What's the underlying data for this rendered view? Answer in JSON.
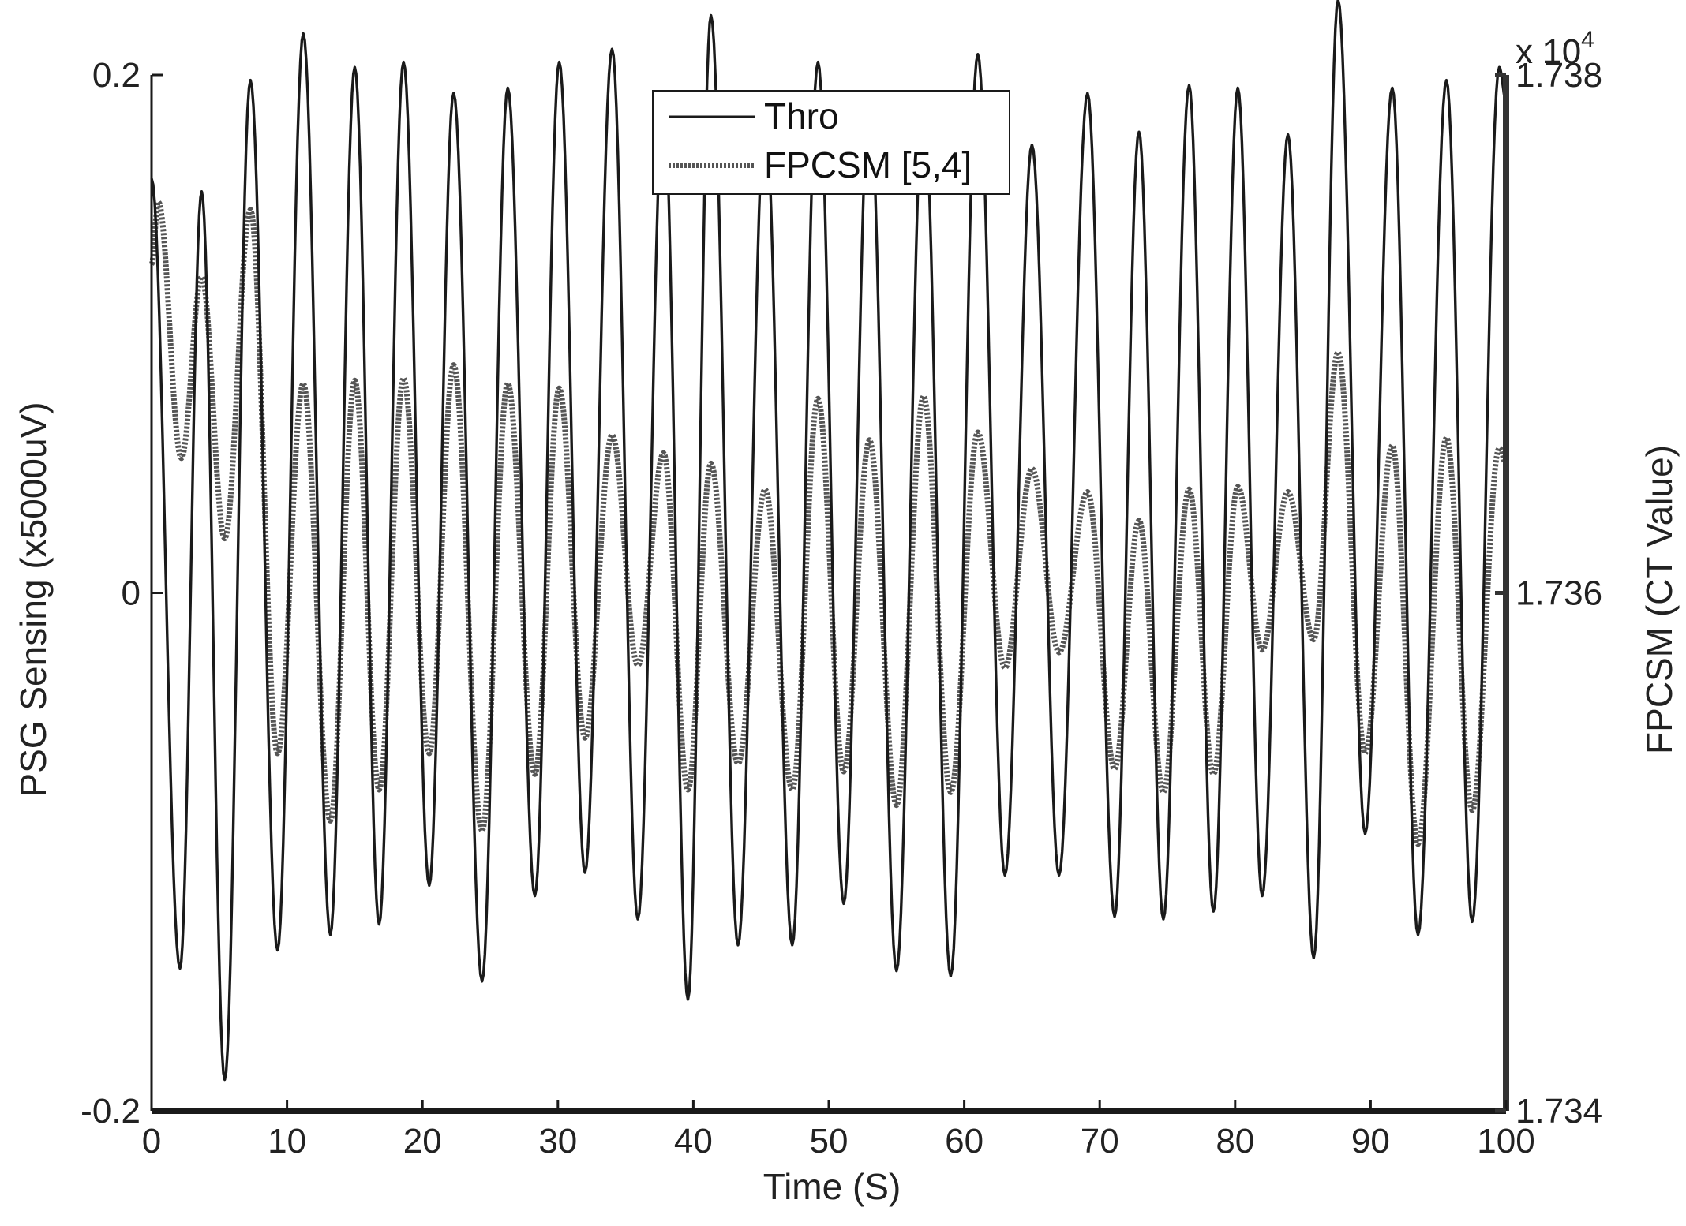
{
  "chart_data": {
    "type": "line",
    "title": "",
    "xlabel": "Time (S)",
    "ylabel_left": "PSG Sensing (x5000uV)",
    "ylabel_right": "FPCSM (CT Value)",
    "right_axis_exponent": "x 10",
    "right_axis_exponent_power": "4",
    "xlim": [
      0,
      100
    ],
    "ylim_left": [
      -0.2,
      0.2
    ],
    "ylim_right": [
      1.734,
      1.738
    ],
    "x_ticks": [
      "0",
      "10",
      "20",
      "30",
      "40",
      "50",
      "60",
      "70",
      "80",
      "90",
      "100"
    ],
    "y_left_ticks": [
      "-0.2",
      "0",
      "0.2"
    ],
    "y_right_ticks": [
      "1.734",
      "1.736",
      "1.738"
    ],
    "legend_position": "top-center",
    "legend": [
      "Thro",
      "FPCSM [5,4]"
    ],
    "series": [
      {
        "name": "Thro",
        "axis": "left",
        "style": "solid",
        "color": "#1a1a1a",
        "points": [
          [
            0.0,
            0.16
          ],
          [
            2.1,
            -0.145
          ],
          [
            3.7,
            0.155
          ],
          [
            5.4,
            -0.188
          ],
          [
            7.3,
            0.198
          ],
          [
            9.3,
            -0.138
          ],
          [
            11.2,
            0.216
          ],
          [
            13.2,
            -0.132
          ],
          [
            15.0,
            0.203
          ],
          [
            16.8,
            -0.128
          ],
          [
            18.6,
            0.205
          ],
          [
            20.5,
            -0.113
          ],
          [
            22.3,
            0.193
          ],
          [
            24.4,
            -0.15
          ],
          [
            26.3,
            0.195
          ],
          [
            28.3,
            -0.117
          ],
          [
            30.1,
            0.205
          ],
          [
            32.0,
            -0.108
          ],
          [
            34.0,
            0.21
          ],
          [
            35.9,
            -0.126
          ],
          [
            37.8,
            0.19
          ],
          [
            39.6,
            -0.157
          ],
          [
            41.3,
            0.223
          ],
          [
            43.3,
            -0.136
          ],
          [
            45.3,
            0.185
          ],
          [
            47.3,
            -0.136
          ],
          [
            49.2,
            0.205
          ],
          [
            51.1,
            -0.12
          ],
          [
            53.0,
            0.193
          ],
          [
            55.0,
            -0.146
          ],
          [
            57.0,
            0.192
          ],
          [
            59.0,
            -0.148
          ],
          [
            61.0,
            0.208
          ],
          [
            63.0,
            -0.109
          ],
          [
            65.0,
            0.173
          ],
          [
            67.0,
            -0.109
          ],
          [
            69.1,
            0.193
          ],
          [
            71.1,
            -0.125
          ],
          [
            72.9,
            0.178
          ],
          [
            74.7,
            -0.126
          ],
          [
            76.6,
            0.196
          ],
          [
            78.4,
            -0.123
          ],
          [
            80.2,
            0.195
          ],
          [
            82.0,
            -0.117
          ],
          [
            83.9,
            0.177
          ],
          [
            85.8,
            -0.141
          ],
          [
            87.6,
            0.229
          ],
          [
            89.6,
            -0.093
          ],
          [
            91.6,
            0.195
          ],
          [
            93.5,
            -0.132
          ],
          [
            95.6,
            0.198
          ],
          [
            97.5,
            -0.127
          ],
          [
            99.5,
            0.203
          ],
          [
            100.0,
            0.19
          ]
        ]
      },
      {
        "name": "FPCSM [5,4]",
        "axis": "right",
        "style": "dotted",
        "color": "#555555",
        "points": [
          [
            0.0,
            1.73727
          ],
          [
            0.5,
            1.73751
          ],
          [
            2.2,
            1.73652
          ],
          [
            3.7,
            1.73722
          ],
          [
            5.4,
            1.73621
          ],
          [
            7.3,
            1.73748
          ],
          [
            9.3,
            1.73538
          ],
          [
            11.2,
            1.73681
          ],
          [
            13.2,
            1.73512
          ],
          [
            15.0,
            1.73682
          ],
          [
            16.8,
            1.73524
          ],
          [
            18.6,
            1.73683
          ],
          [
            20.5,
            1.73538
          ],
          [
            22.3,
            1.73688
          ],
          [
            24.4,
            1.73508
          ],
          [
            26.3,
            1.73681
          ],
          [
            28.3,
            1.7353
          ],
          [
            30.1,
            1.73679
          ],
          [
            32.0,
            1.73544
          ],
          [
            34.0,
            1.73661
          ],
          [
            35.9,
            1.73572
          ],
          [
            37.8,
            1.73654
          ],
          [
            39.6,
            1.73524
          ],
          [
            41.3,
            1.7365
          ],
          [
            43.3,
            1.73534
          ],
          [
            45.3,
            1.7364
          ],
          [
            47.3,
            1.73524
          ],
          [
            49.2,
            1.73675
          ],
          [
            51.1,
            1.73531
          ],
          [
            53.0,
            1.73659
          ],
          [
            55.0,
            1.73518
          ],
          [
            57.0,
            1.73676
          ],
          [
            59.0,
            1.73523
          ],
          [
            61.0,
            1.73662
          ],
          [
            63.0,
            1.73571
          ],
          [
            65.0,
            1.73648
          ],
          [
            67.0,
            1.73577
          ],
          [
            69.1,
            1.73639
          ],
          [
            71.1,
            1.73532
          ],
          [
            72.9,
            1.73628
          ],
          [
            74.7,
            1.73523
          ],
          [
            76.6,
            1.7364
          ],
          [
            78.4,
            1.7353
          ],
          [
            80.2,
            1.73641
          ],
          [
            82.0,
            1.73578
          ],
          [
            83.9,
            1.73639
          ],
          [
            85.8,
            1.73582
          ],
          [
            87.6,
            1.73693
          ],
          [
            89.6,
            1.73538
          ],
          [
            91.6,
            1.73657
          ],
          [
            93.5,
            1.73503
          ],
          [
            95.6,
            1.7366
          ],
          [
            97.5,
            1.73516
          ],
          [
            99.5,
            1.73656
          ],
          [
            100.0,
            1.7365
          ]
        ]
      }
    ]
  }
}
